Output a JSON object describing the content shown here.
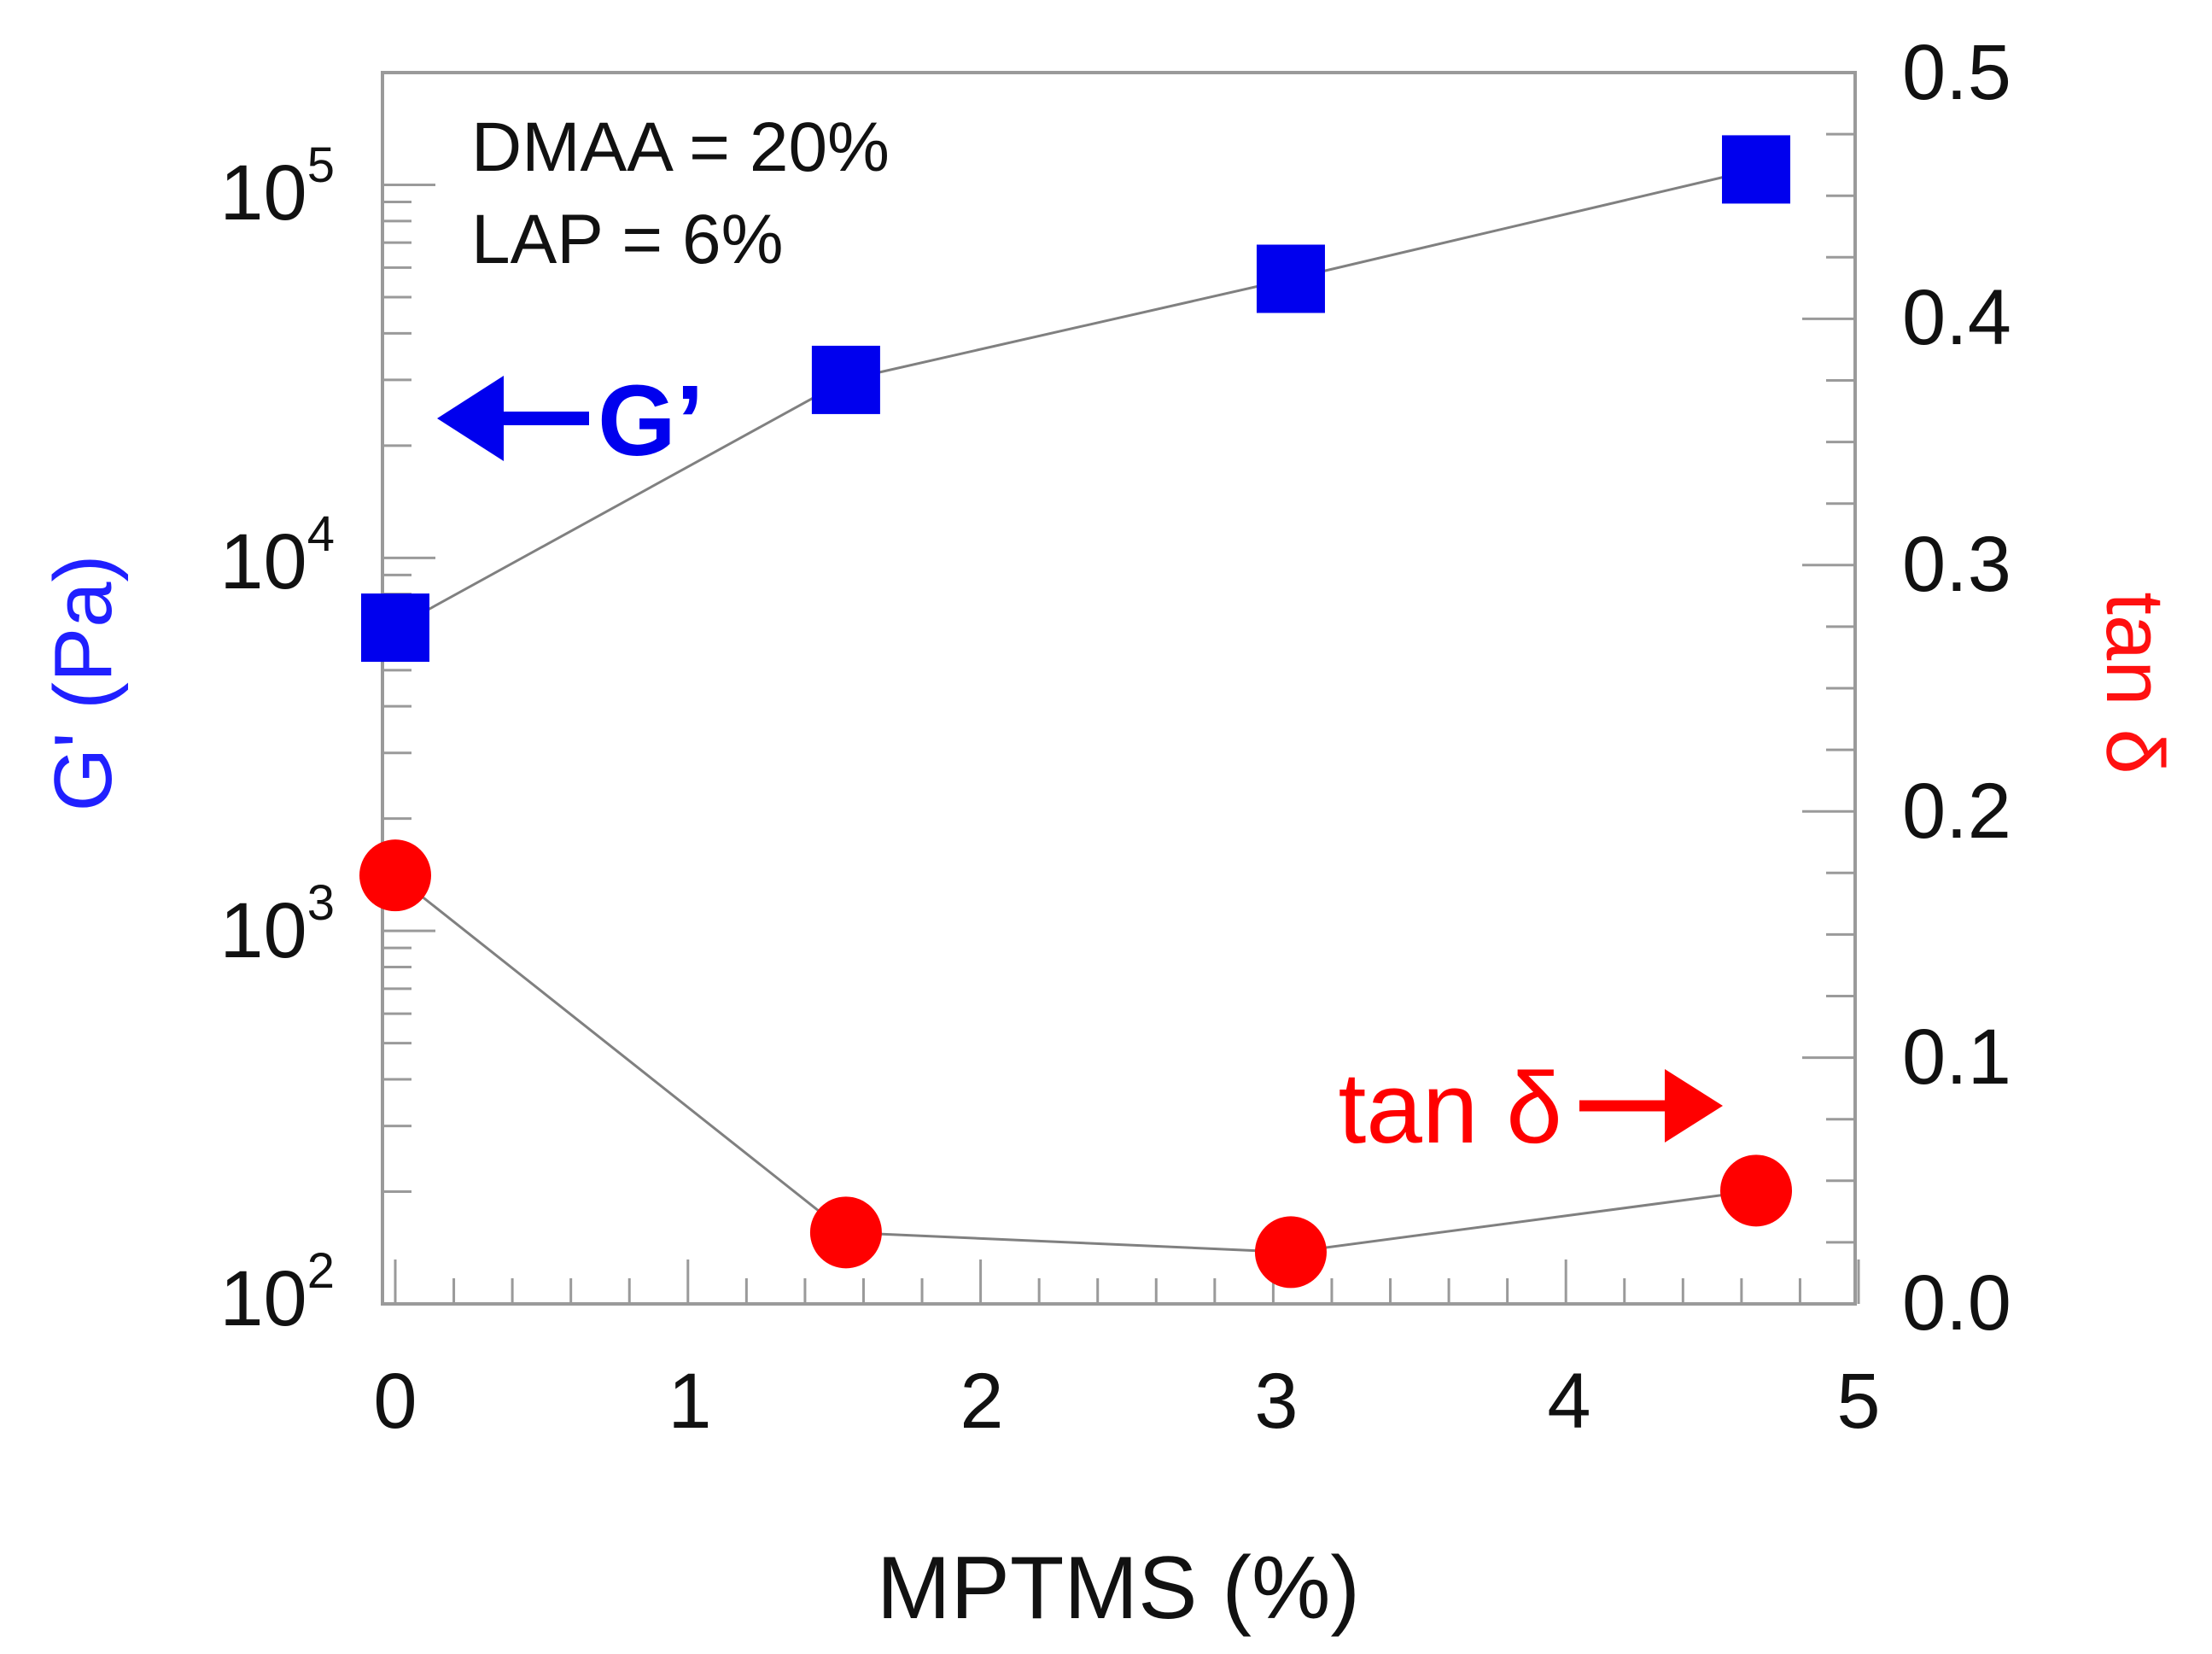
{
  "chart_data": {
    "type": "scatter",
    "xlabel": "MPTMS (%)",
    "x_ticks": [
      "0",
      "1",
      "2",
      "3",
      "4",
      "5"
    ],
    "xlim": [
      0,
      5
    ],
    "left_axis": {
      "label": "G' (Pa)",
      "scale": "log",
      "ylim": [
        100,
        200000
      ],
      "tick_values": [
        100,
        1000,
        10000,
        100000
      ],
      "tick_labels": [
        {
          "base": "10",
          "exp": "2"
        },
        {
          "base": "10",
          "exp": "3"
        },
        {
          "base": "10",
          "exp": "4"
        },
        {
          "base": "10",
          "exp": "5"
        }
      ]
    },
    "right_axis": {
      "label": "tan δ",
      "scale": "linear",
      "ylim": [
        0.0,
        0.5
      ],
      "tick_labels": [
        "0.0",
        "0.1",
        "0.2",
        "0.3",
        "0.4",
        "0.5"
      ]
    },
    "series": [
      {
        "name": "G'",
        "axis": "left",
        "marker": "square",
        "color": "#0000ee",
        "x": [
          0,
          1.54,
          3.06,
          4.65
        ],
        "y": [
          6500,
          30000,
          56000,
          110000
        ]
      },
      {
        "name": "tan δ",
        "axis": "right",
        "marker": "circle",
        "color": "#ff0000",
        "x": [
          0,
          1.54,
          3.06,
          4.65
        ],
        "y": [
          0.174,
          0.029,
          0.021,
          0.046
        ]
      }
    ],
    "annotations": {
      "note_line1": "DMAA = 20%",
      "note_line2": "LAP = 6%",
      "g_callout": "G’",
      "tan_callout": "tan δ"
    }
  }
}
